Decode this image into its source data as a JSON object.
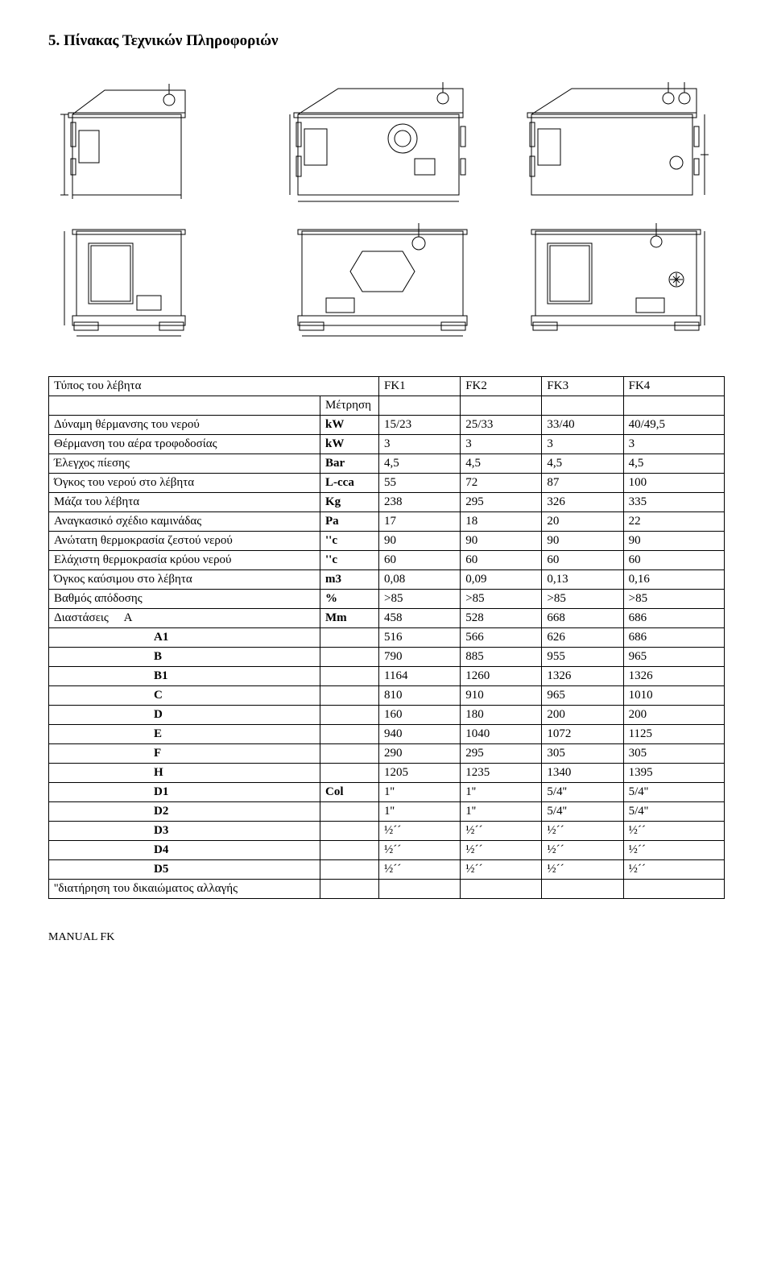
{
  "heading": "5. Πίνακας Τεχνικών Πληροφοριών",
  "table": {
    "header": {
      "col1": "Τύπος του λέβητα",
      "col2": "",
      "c3": "FK1",
      "c4": "FK2",
      "c5": "FK3",
      "c6": "FK4"
    },
    "row_measure": {
      "p1": "",
      "p2": "Μέτρηση",
      "v1": "",
      "v2": "",
      "v3": "",
      "v4": ""
    },
    "rows": [
      {
        "p1": "Δύναμη θέρμανσης του νερού",
        "p2": "kW",
        "v1": "15/23",
        "v2": "25/33",
        "v3": "33/40",
        "v4": "40/49,5"
      },
      {
        "p1": "Θέρμανση του αέρα τροφοδοσίας",
        "p2": "kW",
        "v1": "3",
        "v2": "3",
        "v3": "3",
        "v4": "3"
      },
      {
        "p1": "Έλεγχος πίεσης",
        "p2": "Bar",
        "v1": "4,5",
        "v2": "4,5",
        "v3": "4,5",
        "v4": "4,5"
      },
      {
        "p1": "Όγκος του νερού στο λέβητα",
        "p2": "L-cca",
        "v1": "55",
        "v2": "72",
        "v3": "87",
        "v4": "100"
      },
      {
        "p1": "Μάζα του λέβητα",
        "p2": "Kg",
        "v1": "238",
        "v2": "295",
        "v3": "326",
        "v4": "335"
      },
      {
        "p1": "Αναγκασικό σχέδιο καμινάδας",
        "p2": "Pa",
        "v1": "17",
        "v2": "18",
        "v3": "20",
        "v4": "22"
      },
      {
        "p1": "Ανώτατη θερμοκρασία ζεστού νερού",
        "p2": "''c",
        "v1": "90",
        "v2": "90",
        "v3": "90",
        "v4": "90"
      },
      {
        "p1": "Ελάχιστη θερμοκρασία κρύου νερού",
        "p2": "''c",
        "v1": "60",
        "v2": "60",
        "v3": "60",
        "v4": "60"
      },
      {
        "p1": "Όγκος καύσιμου στο λέβητα",
        "p2": "m3",
        "v1": "0,08",
        "v2": "0,09",
        "v3": "0,13",
        "v4": "0,16"
      },
      {
        "p1": "Βαθμός απόδοσης",
        "p2": "%",
        "v1": ">85",
        "v2": ">85",
        "v3": ">85",
        "v4": ">85"
      }
    ],
    "dims": [
      {
        "label": "Διαστάσεις     A",
        "p2": "Mm",
        "v1": "458",
        "v2": "528",
        "v3": "668",
        "v4": "686"
      },
      {
        "label": "A1",
        "p2": "",
        "v1": "516",
        "v2": "566",
        "v3": "626",
        "v4": "686"
      },
      {
        "label": "B",
        "p2": "",
        "v1": "790",
        "v2": "885",
        "v3": "955",
        "v4": "965"
      },
      {
        "label": "B1",
        "p2": "",
        "v1": "1164",
        "v2": "1260",
        "v3": "1326",
        "v4": "1326"
      },
      {
        "label": "C",
        "p2": "",
        "v1": "810",
        "v2": "910",
        "v3": "965",
        "v4": "1010"
      },
      {
        "label": "D",
        "p2": "",
        "v1": "160",
        "v2": "180",
        "v3": "200",
        "v4": "200"
      },
      {
        "label": "E",
        "p2": "",
        "v1": "940",
        "v2": "1040",
        "v3": "1072",
        "v4": "1125"
      },
      {
        "label": "F",
        "p2": "",
        "v1": "290",
        "v2": "295",
        "v3": "305",
        "v4": "305"
      },
      {
        "label": "H",
        "p2": "",
        "v1": "1205",
        "v2": "1235",
        "v3": "1340",
        "v4": "1395"
      },
      {
        "label": "D1",
        "p2": "Col",
        "v1": "1''",
        "v2": "1''",
        "v3": "5/4''",
        "v4": "5/4''"
      },
      {
        "label": "D2",
        "p2": "",
        "v1": "1''",
        "v2": "1''",
        "v3": "5/4''",
        "v4": "5/4''"
      },
      {
        "label": "D3",
        "p2": "",
        "v1": "½´´",
        "v2": "½´´",
        "v3": "½´´",
        "v4": "½´´"
      },
      {
        "label": "D4",
        "p2": "",
        "v1": "½´´",
        "v2": "½´´",
        "v3": "½´´",
        "v4": "½´´"
      },
      {
        "label": "D5",
        "p2": "",
        "v1": "½´´",
        "v2": "½´´",
        "v3": "½´´",
        "v4": "½´´"
      }
    ],
    "last": {
      "p1": "''διατήρηση του δικαιώματος αλλαγής",
      "p2": "",
      "v1": "",
      "v2": "",
      "v3": "",
      "v4": ""
    }
  },
  "footer": "MANUAL FK",
  "svg": {
    "stroke": "#000000",
    "bg": "#ffffff"
  }
}
